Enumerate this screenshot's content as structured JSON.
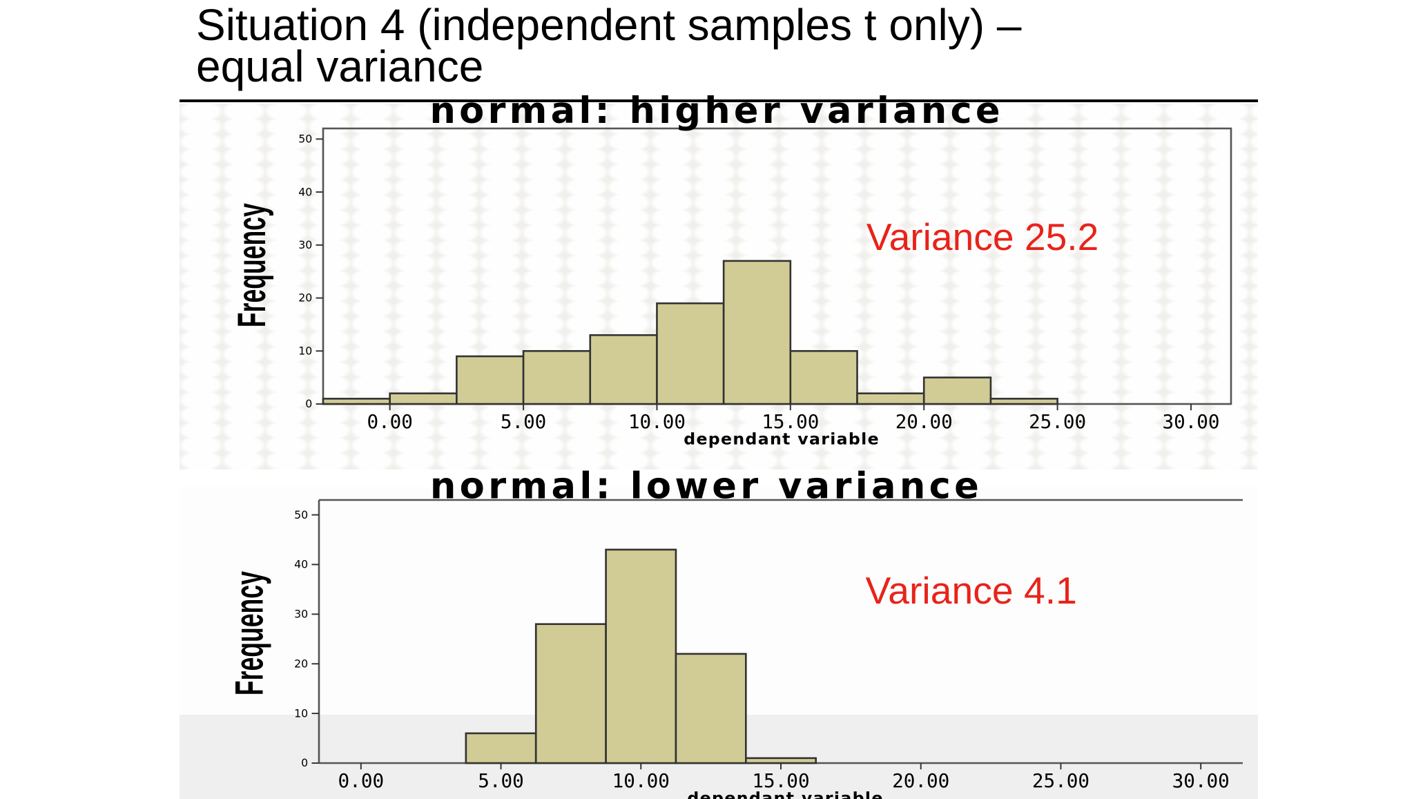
{
  "slide": {
    "title_line1": "Situation 4 (independent samples t only) –",
    "title_line2": "equal variance"
  },
  "chart_data": [
    {
      "type": "bar",
      "title": "normal: higher variance",
      "xlabel": "dependant variable",
      "ylabel": "Frequency",
      "annotation": "Variance 25.2",
      "bin_width": 2.5,
      "bin_starts": [
        -2.5,
        0,
        2.5,
        5,
        7.5,
        10,
        12.5,
        15,
        17.5,
        20,
        22.5
      ],
      "values": [
        1,
        2,
        9,
        10,
        13,
        19,
        27,
        10,
        2,
        5,
        1
      ],
      "xlim": [
        -2.5,
        31.5
      ],
      "ylim": [
        0,
        52
      ],
      "xticks": [
        "0.00",
        "5.00",
        "10.00",
        "15.00",
        "20.00",
        "25.00",
        "30.00"
      ],
      "xtick_values": [
        0,
        5,
        10,
        15,
        20,
        25,
        30
      ],
      "yticks": [
        "0",
        "10",
        "20",
        "30",
        "40",
        "50"
      ],
      "ytick_values": [
        0,
        10,
        20,
        30,
        40,
        50
      ],
      "colors": {
        "bar_fill": "#d1cc95",
        "bar_stroke": "#333333",
        "annotation": "#e8231a"
      },
      "grid": false
    },
    {
      "type": "bar",
      "title": "normal: lower variance",
      "xlabel": "dependant variable",
      "ylabel": "Frequency",
      "annotation": "Variance 4.1",
      "bin_width": 2.5,
      "bin_starts": [
        3.75,
        6.25,
        8.75,
        11.25,
        13.75
      ],
      "values": [
        6,
        28,
        43,
        22,
        1
      ],
      "xlim": [
        -1.5,
        31.5
      ],
      "ylim": [
        0,
        53
      ],
      "xticks": [
        "0.00",
        "5.00",
        "10.00",
        "15.00",
        "20.00",
        "25.00",
        "30.00"
      ],
      "xtick_values": [
        0,
        5,
        10,
        15,
        20,
        25,
        30
      ],
      "yticks": [
        "0",
        "10",
        "20",
        "30",
        "40",
        "50"
      ],
      "ytick_values": [
        0,
        10,
        20,
        30,
        40,
        50
      ],
      "colors": {
        "bar_fill": "#d1cc95",
        "bar_stroke": "#333333",
        "annotation": "#e8231a"
      },
      "grid": false
    }
  ]
}
